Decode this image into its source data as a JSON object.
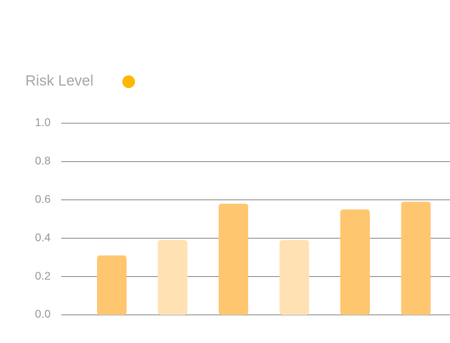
{
  "chart_data": {
    "type": "bar",
    "series": [
      {
        "name": "Risk Level",
        "color": "#FFB800",
        "values": [
          0.31,
          0.39,
          0.58,
          0.39,
          0.55,
          0.59
        ],
        "colors": [
          "#FFC670",
          "#FFE1B3",
          "#FFC670",
          "#FFE1B3",
          "#FFC670",
          "#FFC670"
        ]
      }
    ],
    "categories": [
      null,
      null,
      null,
      null,
      null,
      null
    ],
    "ylim": [
      0,
      1
    ],
    "yticks": [
      {
        "value": 0,
        "label": "0.0"
      },
      0.2,
      0.4,
      0.6,
      0.8,
      {
        "value": 1,
        "label": "1.0"
      }
    ],
    "grid": true
  }
}
